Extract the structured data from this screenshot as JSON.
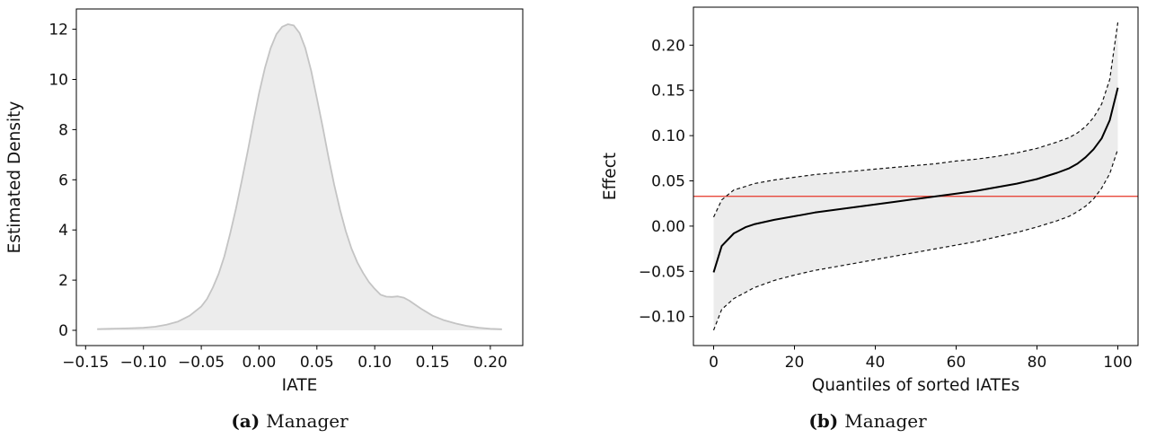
{
  "captions": {
    "a": {
      "label": "(a)",
      "text": "Manager"
    },
    "b": {
      "label": "(b)",
      "text": "Manager"
    }
  },
  "chart_data": [
    {
      "type": "area",
      "title": "",
      "xlabel": "IATE",
      "ylabel": "Estimated Density",
      "xlim": [
        -0.158,
        0.228
      ],
      "ylim": [
        -0.61,
        12.81
      ],
      "grid": false,
      "legend": "none",
      "xticks": [
        {
          "v": -0.15,
          "label": "−0.15"
        },
        {
          "v": -0.1,
          "label": "−0.10"
        },
        {
          "v": -0.05,
          "label": "−0.05"
        },
        {
          "v": 0.0,
          "label": "0.00"
        },
        {
          "v": 0.05,
          "label": "0.05"
        },
        {
          "v": 0.1,
          "label": "0.10"
        },
        {
          "v": 0.15,
          "label": "0.15"
        },
        {
          "v": 0.2,
          "label": "0.20"
        }
      ],
      "yticks": [
        {
          "v": 0,
          "label": "0"
        },
        {
          "v": 2,
          "label": "2"
        },
        {
          "v": 4,
          "label": "4"
        },
        {
          "v": 6,
          "label": "6"
        },
        {
          "v": 8,
          "label": "8"
        },
        {
          "v": 10,
          "label": "10"
        },
        {
          "v": 12,
          "label": "12"
        }
      ],
      "line_color": "#c4c4c4",
      "fill_color": "#ececec",
      "x": [
        -0.14,
        -0.13,
        -0.12,
        -0.11,
        -0.1,
        -0.09,
        -0.08,
        -0.07,
        -0.06,
        -0.05,
        -0.045,
        -0.04,
        -0.035,
        -0.03,
        -0.025,
        -0.02,
        -0.015,
        -0.01,
        -0.005,
        0.0,
        0.005,
        0.01,
        0.015,
        0.02,
        0.025,
        0.03,
        0.035,
        0.04,
        0.045,
        0.05,
        0.055,
        0.06,
        0.065,
        0.07,
        0.075,
        0.08,
        0.085,
        0.09,
        0.095,
        0.1,
        0.105,
        0.11,
        0.115,
        0.12,
        0.125,
        0.13,
        0.135,
        0.14,
        0.15,
        0.16,
        0.17,
        0.18,
        0.19,
        0.2,
        0.21
      ],
      "y": [
        0.05,
        0.06,
        0.07,
        0.08,
        0.1,
        0.14,
        0.22,
        0.35,
        0.58,
        0.95,
        1.25,
        1.7,
        2.25,
        2.95,
        3.85,
        4.85,
        5.95,
        7.1,
        8.3,
        9.45,
        10.45,
        11.25,
        11.8,
        12.1,
        12.2,
        12.15,
        11.85,
        11.25,
        10.35,
        9.25,
        8.1,
        6.9,
        5.8,
        4.8,
        3.95,
        3.25,
        2.7,
        2.28,
        1.92,
        1.65,
        1.42,
        1.34,
        1.33,
        1.35,
        1.3,
        1.18,
        1.02,
        0.86,
        0.58,
        0.4,
        0.27,
        0.17,
        0.1,
        0.06,
        0.04
      ]
    },
    {
      "type": "line",
      "title": "",
      "xlabel": "Quantiles of sorted IATEs",
      "ylabel": "Effect",
      "xlim": [
        -5,
        105
      ],
      "ylim": [
        -0.132,
        0.242
      ],
      "grid": false,
      "legend": "none",
      "xticks": [
        {
          "v": 0,
          "label": "0"
        },
        {
          "v": 20,
          "label": "20"
        },
        {
          "v": 40,
          "label": "40"
        },
        {
          "v": 60,
          "label": "60"
        },
        {
          "v": 80,
          "label": "80"
        },
        {
          "v": 100,
          "label": "100"
        }
      ],
      "yticks": [
        {
          "v": -0.1,
          "label": "−0.10"
        },
        {
          "v": -0.05,
          "label": "−0.05"
        },
        {
          "v": 0.0,
          "label": "0.00"
        },
        {
          "v": 0.05,
          "label": "0.05"
        },
        {
          "v": 0.1,
          "label": "0.10"
        },
        {
          "v": 0.15,
          "label": "0.15"
        },
        {
          "v": 0.2,
          "label": "0.20"
        }
      ],
      "band": {
        "upper": 1,
        "lower": 2,
        "fill": "#ececec"
      },
      "reference_line": {
        "value": 0.033,
        "color": "#e8493c"
      },
      "x": [
        0,
        2,
        5,
        8,
        10,
        15,
        20,
        25,
        30,
        35,
        40,
        45,
        50,
        55,
        60,
        65,
        70,
        75,
        80,
        85,
        88,
        90,
        92,
        94,
        96,
        98,
        100
      ],
      "series": [
        {
          "name": "sorted IATE",
          "dash": "none",
          "color": "#000000",
          "width": 2,
          "values": [
            -0.051,
            -0.022,
            -0.008,
            -0.001,
            0.002,
            0.007,
            0.011,
            0.015,
            0.018,
            0.021,
            0.024,
            0.027,
            0.03,
            0.033,
            0.036,
            0.039,
            0.043,
            0.047,
            0.052,
            0.059,
            0.064,
            0.069,
            0.076,
            0.085,
            0.097,
            0.117,
            0.153
          ]
        },
        {
          "name": "upper confidence bound",
          "dash": "4,3",
          "color": "#111111",
          "width": 1.2,
          "values": [
            0.01,
            0.029,
            0.04,
            0.044,
            0.047,
            0.051,
            0.054,
            0.057,
            0.059,
            0.061,
            0.063,
            0.065,
            0.067,
            0.069,
            0.072,
            0.074,
            0.077,
            0.081,
            0.086,
            0.093,
            0.098,
            0.103,
            0.11,
            0.12,
            0.135,
            0.162,
            0.225
          ]
        },
        {
          "name": "lower confidence bound",
          "dash": "4,3",
          "color": "#111111",
          "width": 1.2,
          "values": [
            -0.115,
            -0.092,
            -0.08,
            -0.073,
            -0.068,
            -0.06,
            -0.054,
            -0.049,
            -0.045,
            -0.041,
            -0.037,
            -0.033,
            -0.029,
            -0.025,
            -0.021,
            -0.017,
            -0.012,
            -0.007,
            -0.001,
            0.006,
            0.011,
            0.016,
            0.022,
            0.03,
            0.042,
            0.058,
            0.085
          ]
        }
      ]
    }
  ]
}
